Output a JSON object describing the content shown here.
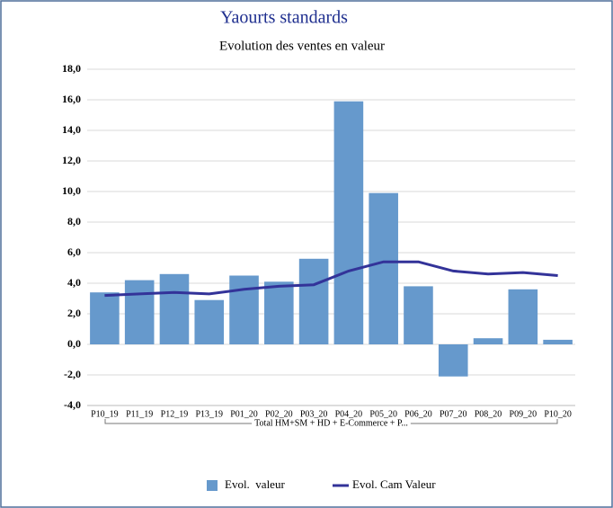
{
  "chart_data": {
    "type": "bar-line",
    "title": "Yaourts standards",
    "subtitle": "Evolution des ventes en valeur",
    "categories": [
      "P10_19",
      "P11_19",
      "P12_19",
      "P13_19",
      "P01_20",
      "P02_20",
      "P03_20",
      "P04_20",
      "P05_20",
      "P06_20",
      "P07_20",
      "P08_20",
      "P09_20",
      "P10_20"
    ],
    "category_group": "Total HM+SM + HD + E-Commerce + P...",
    "series": [
      {
        "name": "Evol.  valeur",
        "type": "bar",
        "color": "#6699cc",
        "values": [
          3.4,
          4.2,
          4.6,
          2.9,
          4.5,
          4.1,
          5.6,
          15.9,
          9.9,
          3.8,
          -2.1,
          0.4,
          3.6,
          0.3
        ]
      },
      {
        "name": "Evol. Cam Valeur",
        "type": "line",
        "color": "#333399",
        "values": [
          3.2,
          3.3,
          3.4,
          3.3,
          3.6,
          3.8,
          3.9,
          4.8,
          5.4,
          5.4,
          4.8,
          4.6,
          4.7,
          4.5
        ]
      }
    ],
    "ylim": [
      -4,
      18
    ],
    "yticks": [
      {
        "value": -4,
        "label": "-4,0"
      },
      {
        "value": -2,
        "label": "-2,0"
      },
      {
        "value": 0,
        "label": "0,0"
      },
      {
        "value": 2,
        "label": "2,0"
      },
      {
        "value": 4,
        "label": "4,0"
      },
      {
        "value": 6,
        "label": "6,0"
      },
      {
        "value": 8,
        "label": "8,0"
      },
      {
        "value": 10,
        "label": "10,0"
      },
      {
        "value": 12,
        "label": "12,0"
      },
      {
        "value": 14,
        "label": "14,0"
      },
      {
        "value": 16,
        "label": "16,0"
      },
      {
        "value": 18,
        "label": "18,0"
      }
    ],
    "grid": true
  }
}
